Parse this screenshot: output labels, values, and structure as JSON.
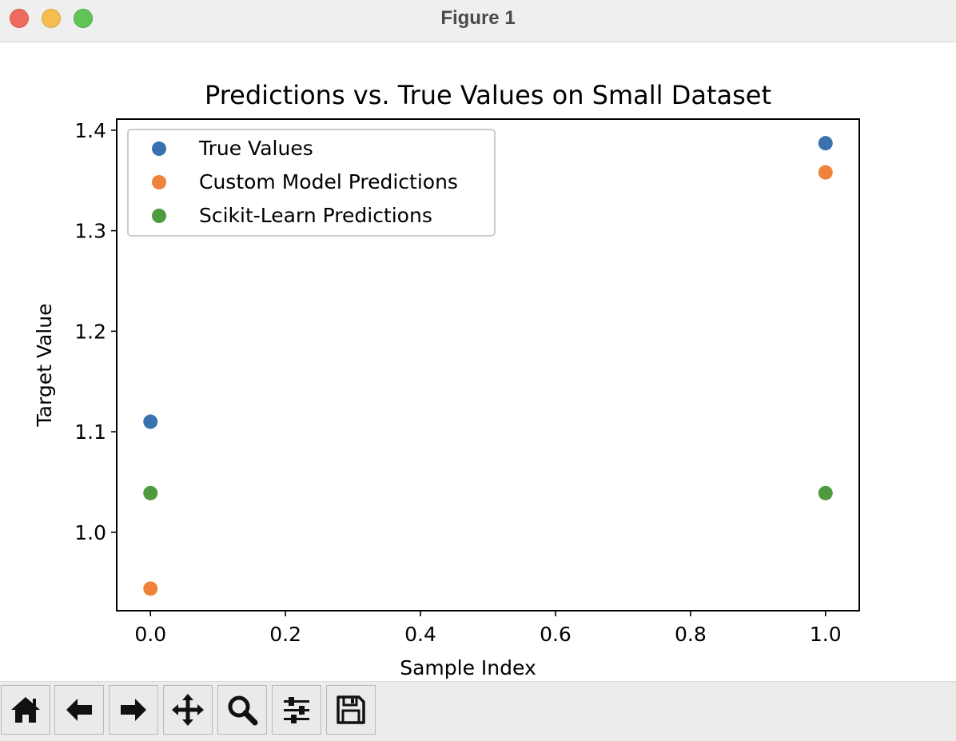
{
  "window": {
    "title": "Figure 1"
  },
  "toolbar": {
    "buttons": [
      {
        "name": "home-button",
        "icon": "home-icon"
      },
      {
        "name": "back-button",
        "icon": "arrow-left-icon"
      },
      {
        "name": "forward-button",
        "icon": "arrow-right-icon"
      },
      {
        "name": "pan-button",
        "icon": "move-icon"
      },
      {
        "name": "zoom-button",
        "icon": "magnifier-icon"
      },
      {
        "name": "configure-subplots-button",
        "icon": "sliders-icon"
      },
      {
        "name": "save-button",
        "icon": "floppy-disk-icon"
      }
    ]
  },
  "chart_data": {
    "type": "scatter",
    "title": "Predictions vs. True Values on Small Dataset",
    "xlabel": "Sample Index",
    "ylabel": "Target Value",
    "xlim": [
      -0.05,
      1.05
    ],
    "ylim": [
      0.922,
      1.411
    ],
    "xticks": [
      0.0,
      0.2,
      0.4,
      0.6,
      0.8,
      1.0
    ],
    "xtick_labels": [
      "0.0",
      "0.2",
      "0.4",
      "0.6",
      "0.8",
      "1.0"
    ],
    "yticks": [
      1.0,
      1.1,
      1.2,
      1.3,
      1.4
    ],
    "ytick_labels": [
      "1.0",
      "1.1",
      "1.2",
      "1.3",
      "1.4"
    ],
    "grid": false,
    "legend_position": "upper-left",
    "series": [
      {
        "name": "True Values",
        "color": "#3a72b0",
        "x": [
          0,
          1
        ],
        "y": [
          1.11,
          1.387
        ]
      },
      {
        "name": "Custom Model Predictions",
        "color": "#f0833a",
        "x": [
          0,
          1
        ],
        "y": [
          0.944,
          1.358
        ]
      },
      {
        "name": "Scikit-Learn Predictions",
        "color": "#4e9a3f",
        "x": [
          0,
          1
        ],
        "y": [
          1.039,
          1.039
        ]
      }
    ]
  }
}
